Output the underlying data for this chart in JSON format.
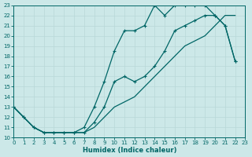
{
  "xlabel": "Humidex (Indice chaleur)",
  "background_color": "#cce8e8",
  "grid_color": "#b8d8d8",
  "line_color": "#006666",
  "xlim": [
    0,
    23
  ],
  "ylim": [
    10,
    23
  ],
  "xticks": [
    0,
    1,
    2,
    3,
    4,
    5,
    6,
    7,
    8,
    9,
    10,
    11,
    12,
    13,
    14,
    15,
    16,
    17,
    18,
    19,
    20,
    21,
    22,
    23
  ],
  "yticks": [
    10,
    11,
    12,
    13,
    14,
    15,
    16,
    17,
    18,
    19,
    20,
    21,
    22,
    23
  ],
  "curve_jagged1_x": [
    0,
    1,
    2,
    3,
    4,
    5,
    6,
    7,
    8,
    9,
    10,
    11,
    12,
    13,
    14,
    15,
    16,
    17,
    18,
    19,
    20,
    21,
    22
  ],
  "curve_jagged1_y": [
    13,
    12,
    11,
    10.5,
    10.5,
    10.5,
    10.5,
    11,
    13,
    15.5,
    18.5,
    20.5,
    20.5,
    21,
    23,
    22,
    23,
    23,
    23,
    23,
    22,
    21,
    17.5
  ],
  "curve_smooth_x": [
    0,
    2,
    3,
    4,
    5,
    6,
    7,
    8,
    9,
    10,
    11,
    12,
    13,
    14,
    15,
    16,
    17,
    18,
    19,
    20,
    21,
    22
  ],
  "curve_smooth_y": [
    13,
    11,
    10.5,
    10.5,
    10.5,
    10.5,
    10.5,
    11,
    12,
    13,
    13.5,
    14,
    15,
    16,
    17,
    18,
    19,
    19.5,
    20,
    21,
    22,
    22
  ],
  "curve_jagged2_x": [
    0,
    1,
    2,
    3,
    4,
    5,
    6,
    7,
    8,
    9,
    10,
    11,
    12,
    13,
    14,
    15,
    16,
    17,
    18,
    19,
    20,
    21,
    22
  ],
  "curve_jagged2_y": [
    13,
    12,
    11,
    10.5,
    10.5,
    10.5,
    10.5,
    10.5,
    11.5,
    13,
    15.5,
    16,
    15.5,
    16,
    17,
    18.5,
    20.5,
    21,
    21.5,
    22,
    22,
    21,
    17.5
  ]
}
